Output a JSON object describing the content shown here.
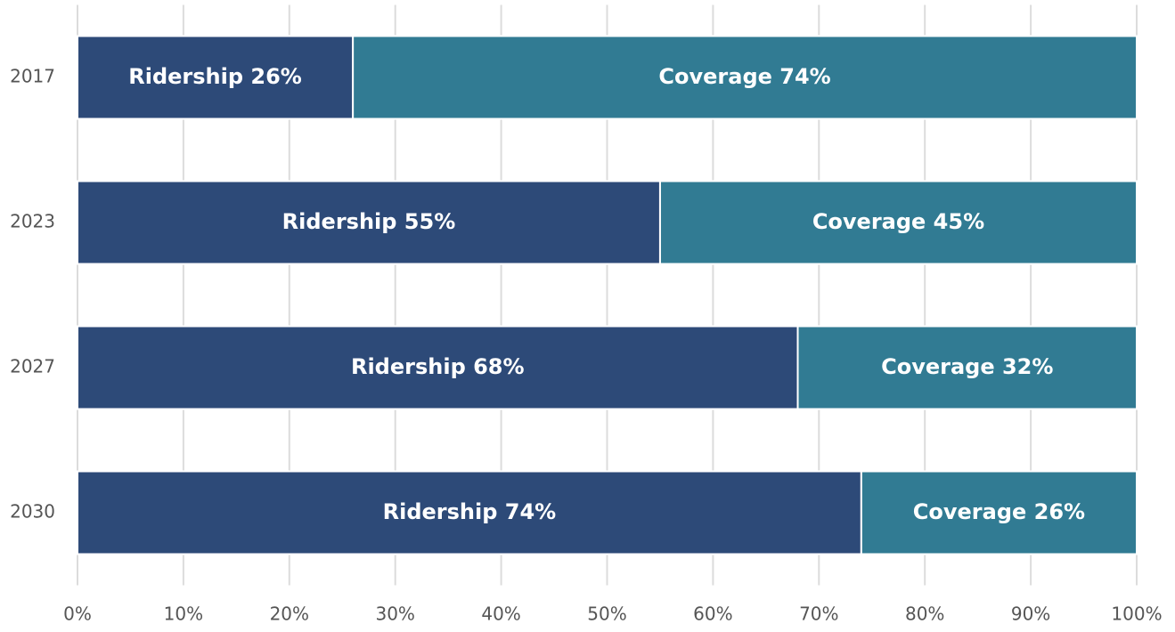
{
  "chart_data": {
    "type": "stacked_barh",
    "categories": [
      "2017",
      "2023",
      "2027",
      "2030"
    ],
    "series": [
      {
        "color": "#2d4a78",
        "values": [
          26,
          55,
          68,
          74
        ],
        "value_labels": [
          "Ridership 26%",
          "Ridership 55%",
          "Ridership 68%",
          "Ridership 74%"
        ]
      },
      {
        "color": "#317b93",
        "values": [
          74,
          45,
          32,
          26
        ],
        "value_labels": [
          "Coverage 74%",
          "Coverage 45%",
          "Coverage 32%",
          "Coverage 26%"
        ]
      }
    ],
    "xlim": [
      0,
      100
    ],
    "xticks": [
      {
        "value": 0,
        "label": "0%"
      },
      {
        "value": 10,
        "label": "10%"
      },
      {
        "value": 20,
        "label": "20%"
      },
      {
        "value": 30,
        "label": "30%"
      },
      {
        "value": 40,
        "label": "40%"
      },
      {
        "value": 50,
        "label": "50%"
      },
      {
        "value": 60,
        "label": "60%"
      },
      {
        "value": 70,
        "label": "70%"
      },
      {
        "value": 80,
        "label": "80%"
      },
      {
        "value": 90,
        "label": "90%"
      },
      {
        "value": 100,
        "label": "100%"
      }
    ],
    "grid": true
  }
}
